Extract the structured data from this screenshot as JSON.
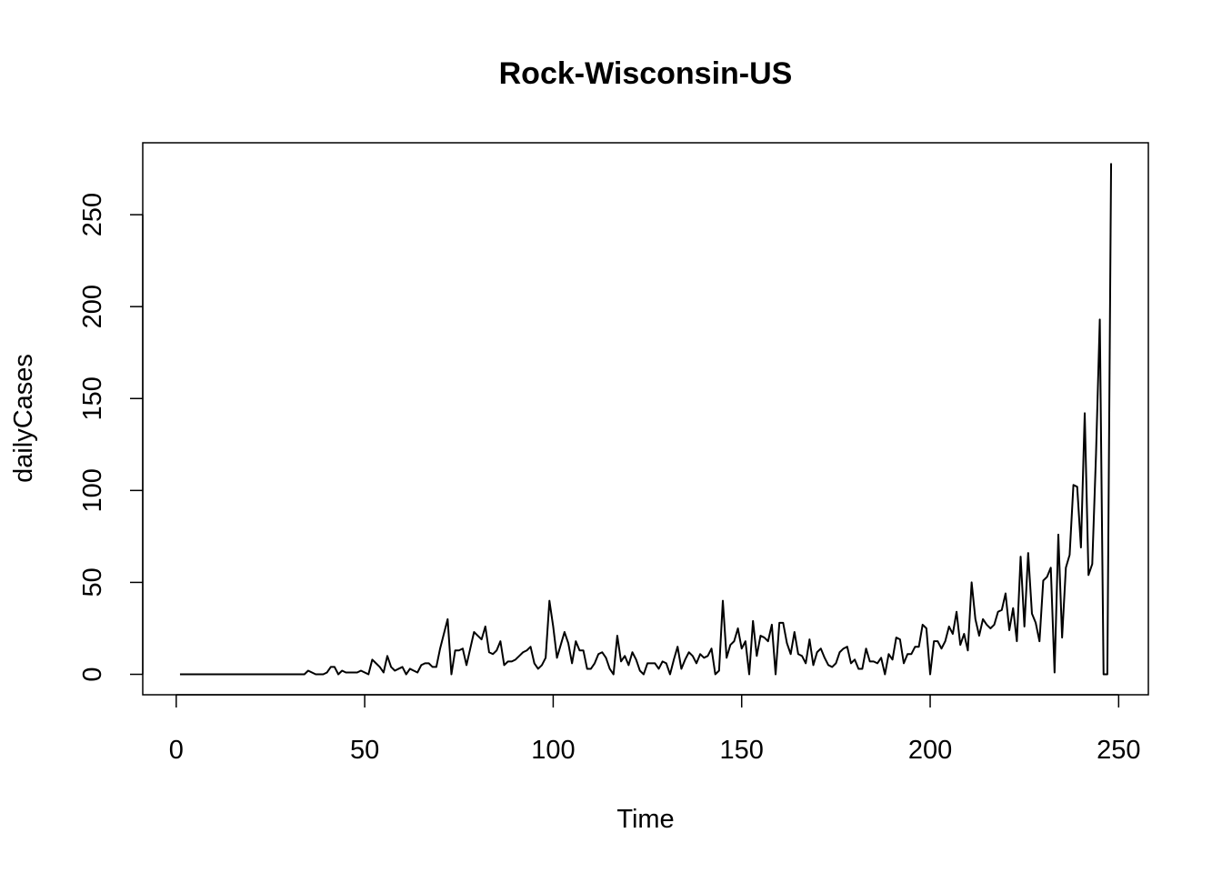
{
  "chart_data": {
    "type": "line",
    "title": "Rock-Wisconsin-US",
    "xlabel": "Time",
    "ylabel": "dailyCases",
    "x": [
      1,
      2,
      3,
      4,
      5,
      6,
      7,
      8,
      9,
      10,
      11,
      12,
      13,
      14,
      15,
      16,
      17,
      18,
      19,
      20,
      21,
      22,
      23,
      24,
      25,
      26,
      27,
      28,
      29,
      30,
      31,
      32,
      33,
      34,
      35,
      36,
      37,
      38,
      39,
      40,
      41,
      42,
      43,
      44,
      45,
      46,
      47,
      48,
      49,
      50,
      51,
      52,
      53,
      54,
      55,
      56,
      57,
      58,
      59,
      60,
      61,
      62,
      63,
      64,
      65,
      66,
      67,
      68,
      69,
      70,
      71,
      72,
      73,
      74,
      75,
      76,
      77,
      78,
      79,
      80,
      81,
      82,
      83,
      84,
      85,
      86,
      87,
      88,
      89,
      90,
      91,
      92,
      93,
      94,
      95,
      96,
      97,
      98,
      99,
      100,
      101,
      102,
      103,
      104,
      105,
      106,
      107,
      108,
      109,
      110,
      111,
      112,
      113,
      114,
      115,
      116,
      117,
      118,
      119,
      120,
      121,
      122,
      123,
      124,
      125,
      126,
      127,
      128,
      129,
      130,
      131,
      132,
      133,
      134,
      135,
      136,
      137,
      138,
      139,
      140,
      141,
      142,
      143,
      144,
      145,
      146,
      147,
      148,
      149,
      150,
      151,
      152,
      153,
      154,
      155,
      156,
      157,
      158,
      159,
      160,
      161,
      162,
      163,
      164,
      165,
      166,
      167,
      168,
      169,
      170,
      171,
      172,
      173,
      174,
      175,
      176,
      177,
      178,
      179,
      180,
      181,
      182,
      183,
      184,
      185,
      186,
      187,
      188,
      189,
      190,
      191,
      192,
      193,
      194,
      195,
      196,
      197,
      198,
      199,
      200,
      201,
      202,
      203,
      204,
      205,
      206,
      207,
      208,
      209,
      210,
      211,
      212,
      213,
      214,
      215,
      216,
      217,
      218,
      219,
      220,
      221,
      222,
      223,
      224,
      225,
      226,
      227,
      228,
      229,
      230,
      231,
      232,
      233,
      234,
      235,
      236,
      237,
      238,
      239,
      240,
      241,
      242,
      243,
      244,
      245,
      246,
      247,
      248
    ],
    "series": [
      {
        "name": "dailyCases",
        "color": "#000000",
        "values": [
          0,
          0,
          0,
          0,
          0,
          0,
          0,
          0,
          0,
          0,
          0,
          0,
          0,
          0,
          0,
          0,
          0,
          0,
          0,
          0,
          0,
          0,
          0,
          0,
          0,
          0,
          0,
          0,
          0,
          0,
          0,
          0,
          0,
          0,
          2,
          1,
          0,
          0,
          0,
          1,
          4,
          4,
          0,
          2,
          1,
          1,
          1,
          1,
          2,
          1,
          0,
          8,
          6,
          4,
          1,
          10,
          4,
          2,
          3,
          4,
          0,
          3,
          2,
          1,
          5,
          6,
          6,
          4,
          4,
          14,
          22,
          30,
          0,
          13,
          13,
          14,
          5,
          14,
          23,
          21,
          19,
          26,
          12,
          11,
          13,
          18,
          5,
          7,
          7,
          8,
          10,
          12,
          13,
          15,
          6,
          3,
          5,
          9,
          40,
          26,
          9,
          16,
          23,
          17,
          6,
          18,
          13,
          13,
          3,
          3,
          6,
          11,
          12,
          9,
          3,
          0,
          21,
          7,
          10,
          5,
          12,
          8,
          2,
          0,
          6,
          6,
          6,
          3,
          7,
          6,
          0,
          8,
          15,
          3,
          8,
          12,
          10,
          6,
          11,
          9,
          10,
          14,
          0,
          2,
          40,
          9,
          16,
          18,
          25,
          14,
          18,
          0,
          29,
          10,
          21,
          20,
          18,
          27,
          0,
          28,
          28,
          17,
          11,
          23,
          11,
          10,
          6,
          19,
          5,
          12,
          14,
          9,
          5,
          4,
          6,
          12,
          14,
          15,
          6,
          8,
          3,
          3,
          14,
          7,
          7,
          6,
          9,
          0,
          11,
          8,
          20,
          19,
          6,
          11,
          11,
          15,
          15,
          27,
          25,
          0,
          18,
          18,
          14,
          18,
          26,
          22,
          34,
          16,
          22,
          13,
          50,
          30,
          21,
          30,
          27,
          25,
          27,
          34,
          35,
          44,
          24,
          36,
          18,
          64,
          26,
          66,
          33,
          28,
          18,
          51,
          53,
          58,
          1,
          76,
          20,
          58,
          65,
          103,
          102,
          69,
          142,
          54,
          60,
          120,
          193,
          0,
          0,
          278
        ]
      }
    ],
    "xlim": [
      -8.88,
      257.88
    ],
    "xticks": [
      0,
      50,
      100,
      150,
      200,
      250
    ],
    "ylim": [
      -11.12,
      289.12
    ],
    "yticks": [
      0,
      50,
      100,
      150,
      200,
      250
    ]
  }
}
